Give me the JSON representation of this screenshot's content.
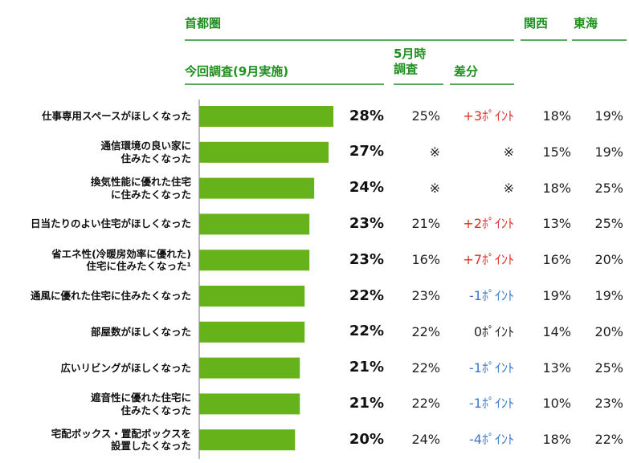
{
  "chart_data": {
    "type": "bar",
    "orientation": "horizontal",
    "group_header": "首都圏",
    "bar_header": "今回調査(9月実施)",
    "categories": [
      "仕事専用スペースがほしくなった",
      "通信環境の良い家に\n住みたくなった",
      "換気性能に優れた住宅\nに住みたくなった",
      "日当たりのよい住宅がほしくなった",
      "省エネ性(冷暖房効率に優れた)\n住宅に住みたくなった¹",
      "通風に優れた住宅に住みたくなった",
      "部屋数がほしくなった",
      "広いリビングがほしくなった",
      "遮音性に優れた住宅に\n住みたくなった",
      "宅配ボックス・置配ボックスを\n設置したくなった"
    ],
    "values": [
      28,
      27,
      24,
      23,
      23,
      22,
      22,
      21,
      21,
      20
    ],
    "value_labels": [
      "28%",
      "27%",
      "24%",
      "23%",
      "23%",
      "22%",
      "22%",
      "21%",
      "21%",
      "20%"
    ],
    "color": "#66b21a",
    "xlim": [
      0,
      28
    ],
    "columns": [
      {
        "header": "5月時\n調査",
        "values": [
          "25%",
          "※",
          "※",
          "21%",
          "16%",
          "23%",
          "22%",
          "22%",
          "22%",
          "24%"
        ]
      },
      {
        "header": "差分",
        "values": [
          "+3ﾎﾟｲﾝﾄ",
          "※",
          "※",
          "+2ﾎﾟｲﾝﾄ",
          "+7ﾎﾟｲﾝﾄ",
          "-1ﾎﾟｲﾝﾄ",
          "0ﾎﾟｲﾝﾄ",
          "-1ﾎﾟｲﾝﾄ",
          "-1ﾎﾟｲﾝﾄ",
          "-4ﾎﾟｲﾝﾄ"
        ],
        "colors": [
          "#d9302a",
          "#222222",
          "#222222",
          "#d9302a",
          "#d9302a",
          "#3a78c8",
          "#222222",
          "#3a78c8",
          "#3a78c8",
          "#3a78c8"
        ]
      },
      {
        "header": "関西",
        "values": [
          "18%",
          "15%",
          "18%",
          "13%",
          "16%",
          "19%",
          "14%",
          "13%",
          "10%",
          "18%"
        ]
      },
      {
        "header": "東海",
        "values": [
          "19%",
          "19%",
          "25%",
          "25%",
          "20%",
          "19%",
          "20%",
          "25%",
          "23%",
          "22%"
        ]
      }
    ]
  }
}
